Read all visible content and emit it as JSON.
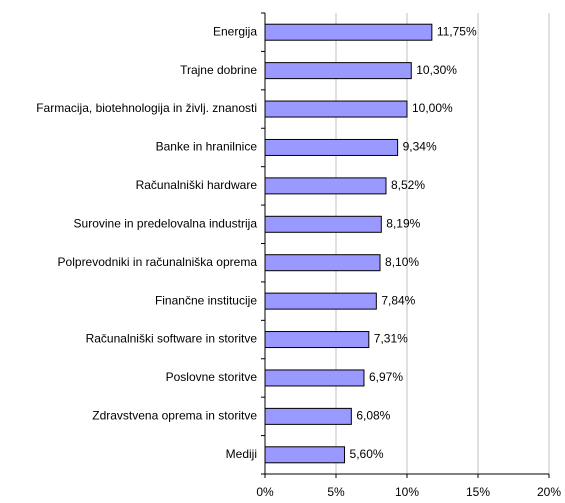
{
  "chart_data": {
    "type": "hbar",
    "categories": [
      "Energija",
      "Trajne dobrine",
      "Farmacija, biotehnologija in življ. znanosti",
      "Banke in hranilnice",
      "Računalniški hardware",
      "Surovine in predelovalna industrija",
      "Polprevodniki in računalniška oprema",
      "Finančne institucije",
      "Računalniški software in storitve",
      "Poslovne storitve",
      "Zdravstvena oprema in storitve",
      "Mediji"
    ],
    "values": [
      11.75,
      10.3,
      10.0,
      9.34,
      8.52,
      8.19,
      8.1,
      7.84,
      7.31,
      6.97,
      6.08,
      5.6
    ],
    "value_labels": [
      "11,75%",
      "10,30%",
      "10,00%",
      "9,34%",
      "8,52%",
      "8,19%",
      "8,10%",
      "7,84%",
      "7,31%",
      "6,97%",
      "6,08%",
      "5,60%"
    ],
    "color": "#9999ff",
    "xlim": [
      0,
      20
    ],
    "xticks": [
      {
        "value": 0,
        "label": "0%"
      },
      {
        "value": 5,
        "label": "5%"
      },
      {
        "value": 10,
        "label": "10%"
      },
      {
        "value": 15,
        "label": "15%"
      },
      {
        "value": 20,
        "label": "20%"
      }
    ],
    "grid": true
  }
}
